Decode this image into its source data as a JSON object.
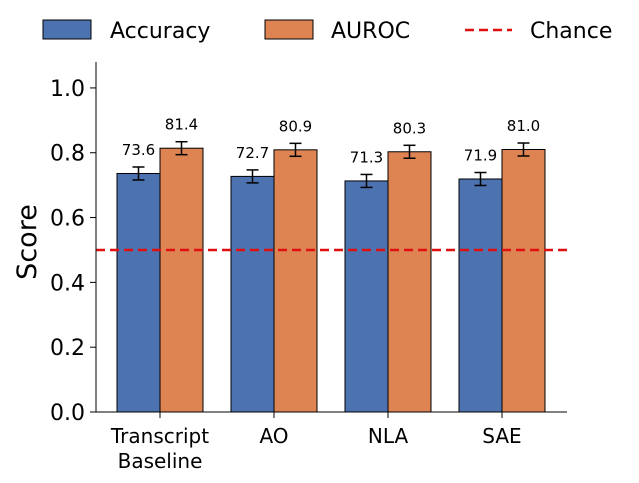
{
  "chart_data": {
    "type": "bar",
    "title": "",
    "xlabel": "",
    "ylabel": "Score",
    "ylim": [
      0.0,
      1.08
    ],
    "yticks": [
      0.0,
      0.2,
      0.4,
      0.6,
      0.8,
      1.0
    ],
    "ytick_labels": [
      "0.0",
      "0.2",
      "0.4",
      "0.6",
      "0.8",
      "1.0"
    ],
    "categories": [
      "Transcript Baseline",
      "AO",
      "NLA",
      "SAE"
    ],
    "category_lines": [
      [
        "Transcript",
        "Baseline"
      ],
      [
        "AO"
      ],
      [
        "NLA"
      ],
      [
        "SAE"
      ]
    ],
    "series": [
      {
        "name": "Accuracy",
        "color": "#4c72b0",
        "values": [
          0.736,
          0.727,
          0.713,
          0.719
        ],
        "errors": [
          0.02,
          0.02,
          0.02,
          0.02
        ],
        "labels": [
          "73.6",
          "72.7",
          "71.3",
          "71.9"
        ]
      },
      {
        "name": "AUROC",
        "color": "#dd8452",
        "values": [
          0.814,
          0.809,
          0.803,
          0.81
        ],
        "errors": [
          0.02,
          0.02,
          0.02,
          0.02
        ],
        "labels": [
          "81.4",
          "80.9",
          "80.3",
          "81.0"
        ]
      }
    ],
    "reference_line": {
      "name": "Chance",
      "value": 0.5,
      "color": "#e01010",
      "style": "dashed"
    },
    "legend_position": "top",
    "grid": false
  }
}
